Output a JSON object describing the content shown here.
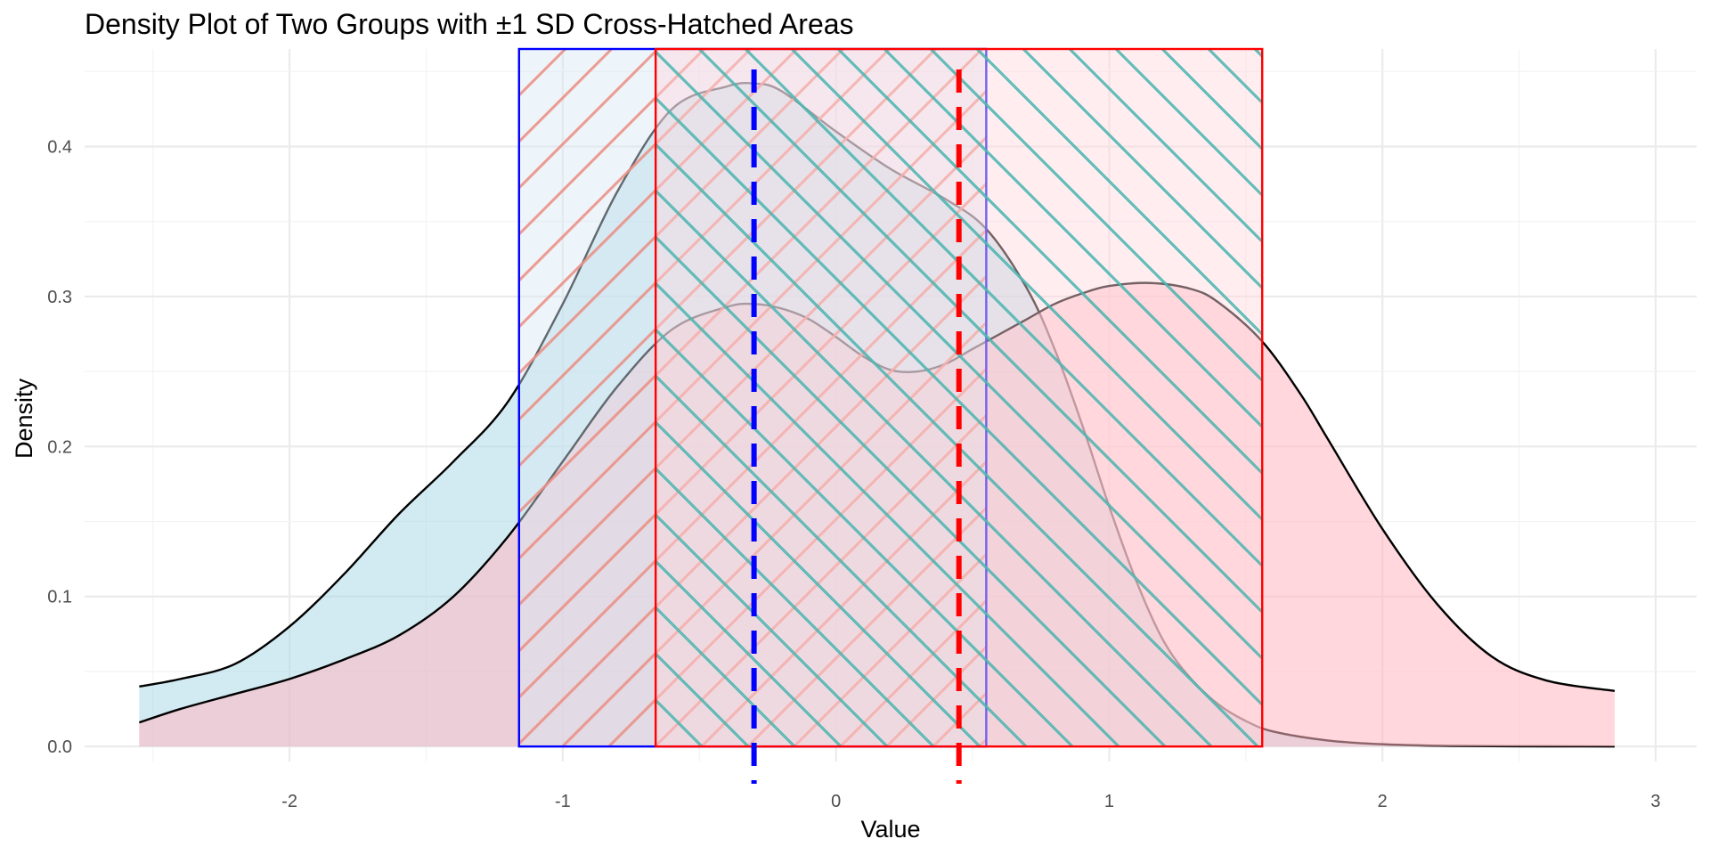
{
  "chart_data": {
    "type": "area",
    "title": "Density Plot of Two Groups with ±1 SD Cross-Hatched Areas",
    "xlabel": "Value",
    "ylabel": "Density",
    "xlim": [
      -2.75,
      3.15
    ],
    "ylim": [
      -0.01,
      0.465
    ],
    "x_ticks": [
      -2,
      -1,
      0,
      1,
      2,
      3
    ],
    "x_tick_labels": [
      "-2",
      "-1",
      "0",
      "1",
      "2",
      "3"
    ],
    "y_ticks": [
      0.0,
      0.1,
      0.2,
      0.3,
      0.4
    ],
    "y_tick_labels": [
      "0.0",
      "0.1",
      "0.2",
      "0.3",
      "0.4"
    ],
    "grid": true,
    "legend": "none",
    "series": [
      {
        "fill_color": "#add8e6",
        "outline_color": "#000000",
        "mean": -0.3,
        "sd_band": [
          -1.16,
          0.55
        ],
        "band_color": "#0000ff",
        "hatch_color": "#fa8072",
        "x": [
          -2.55,
          -2.4,
          -2.2,
          -2.0,
          -1.8,
          -1.6,
          -1.4,
          -1.2,
          -1.0,
          -0.8,
          -0.6,
          -0.4,
          -0.3,
          -0.2,
          0.0,
          0.2,
          0.4,
          0.55,
          0.7,
          0.8,
          0.9,
          1.0,
          1.1,
          1.2,
          1.3,
          1.4,
          1.5,
          1.6,
          1.8,
          2.0,
          2.2,
          2.4,
          2.6,
          2.85
        ],
        "y": [
          0.04,
          0.045,
          0.055,
          0.08,
          0.115,
          0.155,
          0.19,
          0.23,
          0.295,
          0.37,
          0.425,
          0.44,
          0.442,
          0.437,
          0.41,
          0.385,
          0.365,
          0.345,
          0.305,
          0.265,
          0.215,
          0.16,
          0.11,
          0.07,
          0.045,
          0.028,
          0.017,
          0.01,
          0.004,
          0.0015,
          0.0005,
          0.0002,
          0.0001,
          0.0
        ]
      },
      {
        "fill_color": "#ffb6c1",
        "outline_color": "#000000",
        "mean": 0.45,
        "sd_band": [
          -0.66,
          1.56
        ],
        "band_color": "#ff0000",
        "hatch_color": "#20b2aa",
        "x": [
          -2.55,
          -2.4,
          -2.2,
          -2.0,
          -1.8,
          -1.6,
          -1.4,
          -1.2,
          -1.0,
          -0.8,
          -0.6,
          -0.4,
          -0.3,
          -0.2,
          -0.1,
          0.0,
          0.1,
          0.2,
          0.3,
          0.4,
          0.5,
          0.6,
          0.7,
          0.8,
          0.9,
          1.0,
          1.15,
          1.3,
          1.4,
          1.56,
          1.7,
          1.8,
          2.0,
          2.2,
          2.4,
          2.6,
          2.85
        ],
        "y": [
          0.016,
          0.025,
          0.035,
          0.045,
          0.058,
          0.074,
          0.1,
          0.14,
          0.19,
          0.24,
          0.278,
          0.293,
          0.295,
          0.292,
          0.285,
          0.273,
          0.26,
          0.251,
          0.25,
          0.255,
          0.265,
          0.275,
          0.285,
          0.295,
          0.302,
          0.307,
          0.309,
          0.305,
          0.296,
          0.27,
          0.235,
          0.205,
          0.145,
          0.095,
          0.06,
          0.044,
          0.037
        ]
      }
    ]
  }
}
